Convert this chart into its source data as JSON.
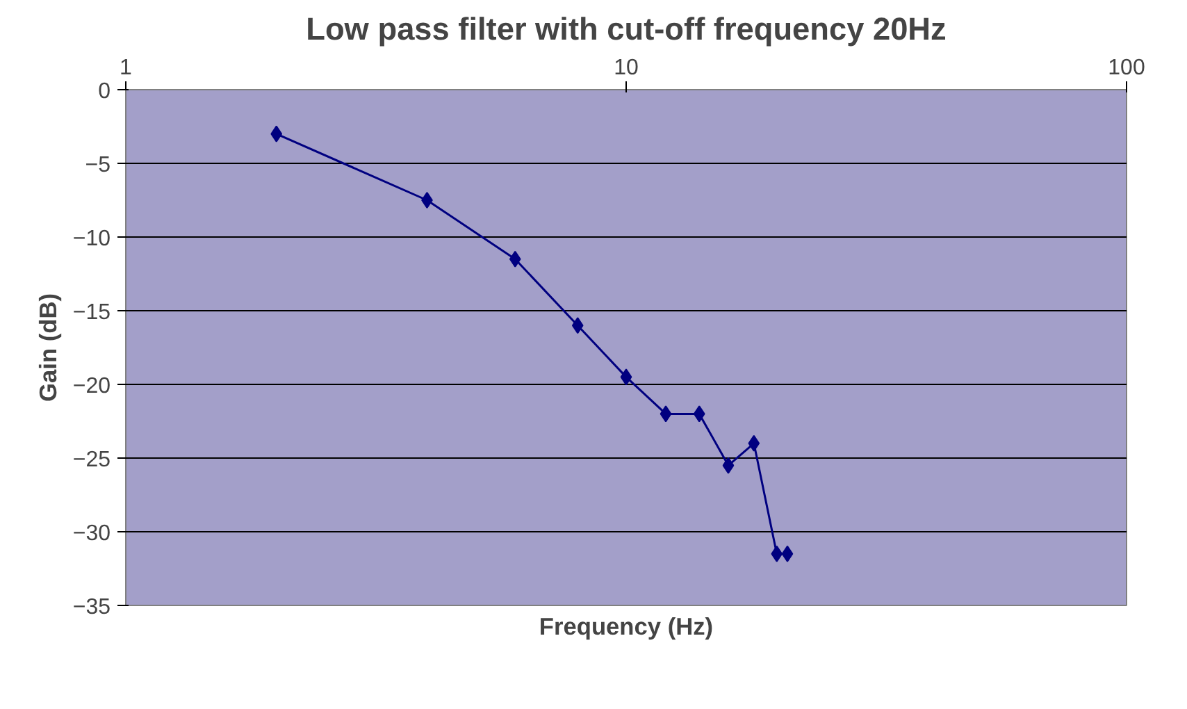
{
  "chart_data": {
    "type": "line",
    "title": "Low pass filter with cut-off frequency 20Hz",
    "xlabel": "Frequency (Hz)",
    "ylabel": "Gain (dB)",
    "x": [
      2,
      4,
      6,
      8,
      10,
      12,
      14,
      16,
      18,
      20,
      21
    ],
    "series": [
      {
        "color": "#000080",
        "values": [
          -3,
          -7.5,
          -11.5,
          -16,
          -19.5,
          -22,
          -22,
          -25.5,
          -24,
          -31.5,
          -31.5
        ]
      }
    ],
    "xlim": [
      1,
      100
    ],
    "xticks": [
      1,
      10,
      100
    ],
    "ylim": [
      -35,
      0
    ],
    "yticks": [
      -35,
      -30,
      -25,
      -20,
      -15,
      -10,
      -5,
      0
    ],
    "log": "x",
    "grid": "y",
    "marker": "diamond",
    "line_style": "solid"
  }
}
